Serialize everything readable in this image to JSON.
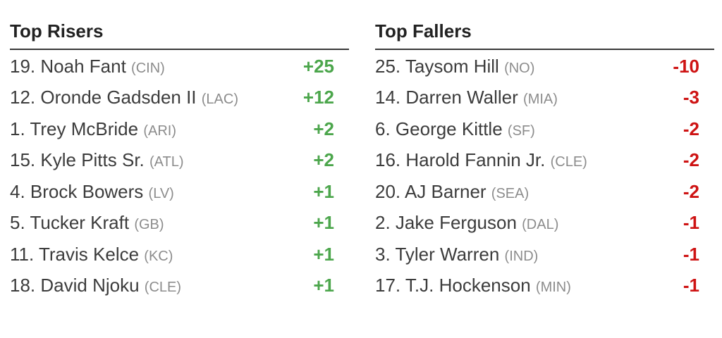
{
  "colors": {
    "positive": "#4ca64c",
    "negative": "#ce1313",
    "player_name": "#3c3c3c",
    "team_abbr": "#8c8c8c",
    "heading": "#222222",
    "divider": "#383838",
    "background": "#ffffff"
  },
  "risers": {
    "title": "Top Risers",
    "items": [
      {
        "rank": "19.",
        "name": "Noah Fant",
        "team": "(CIN)",
        "delta": "+25"
      },
      {
        "rank": "12.",
        "name": "Oronde Gadsden II",
        "team": "(LAC)",
        "delta": "+12"
      },
      {
        "rank": "1.",
        "name": "Trey McBride",
        "team": "(ARI)",
        "delta": "+2"
      },
      {
        "rank": "15.",
        "name": "Kyle Pitts Sr.",
        "team": "(ATL)",
        "delta": "+2"
      },
      {
        "rank": "4.",
        "name": "Brock Bowers",
        "team": "(LV)",
        "delta": "+1"
      },
      {
        "rank": "5.",
        "name": "Tucker Kraft",
        "team": "(GB)",
        "delta": "+1"
      },
      {
        "rank": "11.",
        "name": "Travis Kelce",
        "team": "(KC)",
        "delta": "+1"
      },
      {
        "rank": "18.",
        "name": "David Njoku",
        "team": "(CLE)",
        "delta": "+1"
      }
    ]
  },
  "fallers": {
    "title": "Top Fallers",
    "items": [
      {
        "rank": "25.",
        "name": "Taysom Hill",
        "team": "(NO)",
        "delta": "-10"
      },
      {
        "rank": "14.",
        "name": "Darren Waller",
        "team": "(MIA)",
        "delta": "-3"
      },
      {
        "rank": "6.",
        "name": "George Kittle",
        "team": "(SF)",
        "delta": "-2"
      },
      {
        "rank": "16.",
        "name": "Harold Fannin Jr.",
        "team": "(CLE)",
        "delta": "-2"
      },
      {
        "rank": "20.",
        "name": "AJ Barner",
        "team": "(SEA)",
        "delta": "-2"
      },
      {
        "rank": "2.",
        "name": "Jake Ferguson",
        "team": "(DAL)",
        "delta": "-1"
      },
      {
        "rank": "3.",
        "name": "Tyler Warren",
        "team": "(IND)",
        "delta": "-1"
      },
      {
        "rank": "17.",
        "name": "T.J. Hockenson",
        "team": "(MIN)",
        "delta": "-1"
      }
    ]
  }
}
